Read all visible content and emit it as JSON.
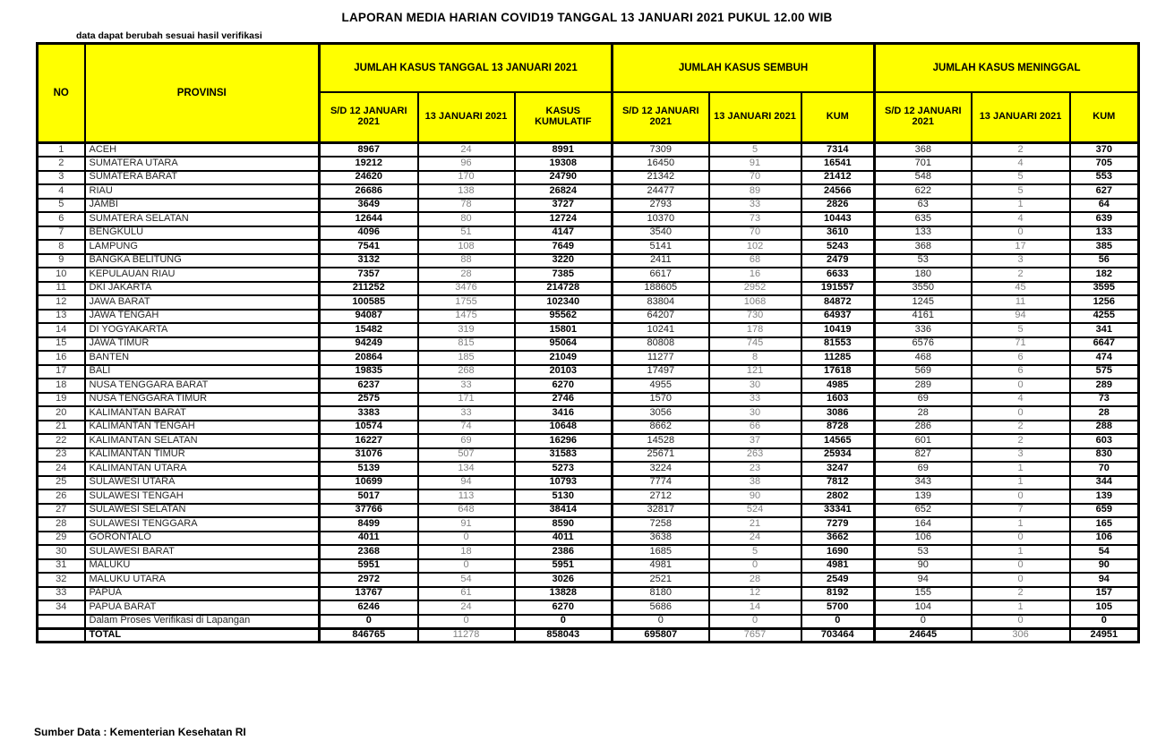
{
  "page": {
    "title": "LAPORAN MEDIA HARIAN COVID19 TANGGAL 13 JANUARI 2021 PUKUL 12.00 WIB",
    "note": "data dapat berubah sesuai hasil verifikasi",
    "source": "Sumber Data : Kementerian Kesehatan RI"
  },
  "colors": {
    "header_bg": "#FFFF00",
    "border": "#000000",
    "muted_text": "#808080"
  },
  "table": {
    "columns": {
      "no": "NO",
      "provinsi": "PROVINSI"
    },
    "groups": [
      {
        "label": "JUMLAH KASUS TANGGAL 13 JANUARI 2021",
        "subcolumns": [
          "S/D 12 JANUARI 2021",
          "13 JANUARI 2021",
          "KASUS KUMULATIF"
        ]
      },
      {
        "label": "JUMLAH KASUS SEMBUH",
        "subcolumns": [
          "S/D 12 JANUARI 2021",
          "13 JANUARI 2021",
          "KUM"
        ]
      },
      {
        "label": "JUMLAH KASUS MENINGGAL",
        "subcolumns": [
          "S/D 12 JANUARI 2021",
          "13 JANUARI 2021",
          "KUM"
        ]
      }
    ],
    "rows": [
      {
        "no": "1",
        "provinsi": "ACEH",
        "values": [
          "8967",
          "24",
          "8991",
          "7309",
          "5",
          "7314",
          "368",
          "2",
          "370"
        ]
      },
      {
        "no": "2",
        "provinsi": "SUMATERA UTARA",
        "values": [
          "19212",
          "96",
          "19308",
          "16450",
          "91",
          "16541",
          "701",
          "4",
          "705"
        ]
      },
      {
        "no": "3",
        "provinsi": "SUMATERA BARAT",
        "values": [
          "24620",
          "170",
          "24790",
          "21342",
          "70",
          "21412",
          "548",
          "5",
          "553"
        ]
      },
      {
        "no": "4",
        "provinsi": "RIAU",
        "values": [
          "26686",
          "138",
          "26824",
          "24477",
          "89",
          "24566",
          "622",
          "5",
          "627"
        ]
      },
      {
        "no": "5",
        "provinsi": "JAMBI",
        "values": [
          "3649",
          "78",
          "3727",
          "2793",
          "33",
          "2826",
          "63",
          "1",
          "64"
        ]
      },
      {
        "no": "6",
        "provinsi": "SUMATERA SELATAN",
        "values": [
          "12644",
          "80",
          "12724",
          "10370",
          "73",
          "10443",
          "635",
          "4",
          "639"
        ]
      },
      {
        "no": "7",
        "provinsi": "BENGKULU",
        "values": [
          "4096",
          "51",
          "4147",
          "3540",
          "70",
          "3610",
          "133",
          "0",
          "133"
        ]
      },
      {
        "no": "8",
        "provinsi": "LAMPUNG",
        "values": [
          "7541",
          "108",
          "7649",
          "5141",
          "102",
          "5243",
          "368",
          "17",
          "385"
        ]
      },
      {
        "no": "9",
        "provinsi": "BANGKA BELITUNG",
        "values": [
          "3132",
          "88",
          "3220",
          "2411",
          "68",
          "2479",
          "53",
          "3",
          "56"
        ]
      },
      {
        "no": "10",
        "provinsi": "KEPULAUAN RIAU",
        "values": [
          "7357",
          "28",
          "7385",
          "6617",
          "16",
          "6633",
          "180",
          "2",
          "182"
        ]
      },
      {
        "no": "11",
        "provinsi": "DKI JAKARTA",
        "values": [
          "211252",
          "3476",
          "214728",
          "188605",
          "2952",
          "191557",
          "3550",
          "45",
          "3595"
        ]
      },
      {
        "no": "12",
        "provinsi": "JAWA BARAT",
        "values": [
          "100585",
          "1755",
          "102340",
          "83804",
          "1068",
          "84872",
          "1245",
          "11",
          "1256"
        ]
      },
      {
        "no": "13",
        "provinsi": "JAWA TENGAH",
        "values": [
          "94087",
          "1475",
          "95562",
          "64207",
          "730",
          "64937",
          "4161",
          "94",
          "4255"
        ]
      },
      {
        "no": "14",
        "provinsi": "DI YOGYAKARTA",
        "values": [
          "15482",
          "319",
          "15801",
          "10241",
          "178",
          "10419",
          "336",
          "5",
          "341"
        ]
      },
      {
        "no": "15",
        "provinsi": "JAWA TIMUR",
        "values": [
          "94249",
          "815",
          "95064",
          "80808",
          "745",
          "81553",
          "6576",
          "71",
          "6647"
        ]
      },
      {
        "no": "16",
        "provinsi": "BANTEN",
        "values": [
          "20864",
          "185",
          "21049",
          "11277",
          "8",
          "11285",
          "468",
          "6",
          "474"
        ]
      },
      {
        "no": "17",
        "provinsi": "BALI",
        "values": [
          "19835",
          "268",
          "20103",
          "17497",
          "121",
          "17618",
          "569",
          "6",
          "575"
        ]
      },
      {
        "no": "18",
        "provinsi": "NUSA TENGGARA BARAT",
        "values": [
          "6237",
          "33",
          "6270",
          "4955",
          "30",
          "4985",
          "289",
          "0",
          "289"
        ]
      },
      {
        "no": "19",
        "provinsi": "NUSA TENGGARA TIMUR",
        "values": [
          "2575",
          "171",
          "2746",
          "1570",
          "33",
          "1603",
          "69",
          "4",
          "73"
        ]
      },
      {
        "no": "20",
        "provinsi": "KALIMANTAN BARAT",
        "values": [
          "3383",
          "33",
          "3416",
          "3056",
          "30",
          "3086",
          "28",
          "0",
          "28"
        ]
      },
      {
        "no": "21",
        "provinsi": "KALIMANTAN TENGAH",
        "values": [
          "10574",
          "74",
          "10648",
          "8662",
          "66",
          "8728",
          "286",
          "2",
          "288"
        ]
      },
      {
        "no": "22",
        "provinsi": "KALIMANTAN SELATAN",
        "values": [
          "16227",
          "69",
          "16296",
          "14528",
          "37",
          "14565",
          "601",
          "2",
          "603"
        ]
      },
      {
        "no": "23",
        "provinsi": "KALIMANTAN TIMUR",
        "values": [
          "31076",
          "507",
          "31583",
          "25671",
          "263",
          "25934",
          "827",
          "3",
          "830"
        ]
      },
      {
        "no": "24",
        "provinsi": "KALIMANTAN UTARA",
        "values": [
          "5139",
          "134",
          "5273",
          "3224",
          "23",
          "3247",
          "69",
          "1",
          "70"
        ]
      },
      {
        "no": "25",
        "provinsi": "SULAWESI UTARA",
        "values": [
          "10699",
          "94",
          "10793",
          "7774",
          "38",
          "7812",
          "343",
          "1",
          "344"
        ]
      },
      {
        "no": "26",
        "provinsi": "SULAWESI TENGAH",
        "values": [
          "5017",
          "113",
          "5130",
          "2712",
          "90",
          "2802",
          "139",
          "0",
          "139"
        ]
      },
      {
        "no": "27",
        "provinsi": "SULAWESI SELATAN",
        "values": [
          "37766",
          "648",
          "38414",
          "32817",
          "524",
          "33341",
          "652",
          "7",
          "659"
        ]
      },
      {
        "no": "28",
        "provinsi": "SULAWESI TENGGARA",
        "values": [
          "8499",
          "91",
          "8590",
          "7258",
          "21",
          "7279",
          "164",
          "1",
          "165"
        ]
      },
      {
        "no": "29",
        "provinsi": "GORONTALO",
        "values": [
          "4011",
          "0",
          "4011",
          "3638",
          "24",
          "3662",
          "106",
          "0",
          "106"
        ]
      },
      {
        "no": "30",
        "provinsi": "SULAWESI BARAT",
        "values": [
          "2368",
          "18",
          "2386",
          "1685",
          "5",
          "1690",
          "53",
          "1",
          "54"
        ]
      },
      {
        "no": "31",
        "provinsi": "MALUKU",
        "values": [
          "5951",
          "0",
          "5951",
          "4981",
          "0",
          "4981",
          "90",
          "0",
          "90"
        ]
      },
      {
        "no": "32",
        "provinsi": "MALUKU UTARA",
        "values": [
          "2972",
          "54",
          "3026",
          "2521",
          "28",
          "2549",
          "94",
          "0",
          "94"
        ]
      },
      {
        "no": "33",
        "provinsi": "PAPUA",
        "values": [
          "13767",
          "61",
          "13828",
          "8180",
          "12",
          "8192",
          "155",
          "2",
          "157"
        ]
      },
      {
        "no": "34",
        "provinsi": "PAPUA BARAT",
        "values": [
          "6246",
          "24",
          "6270",
          "5686",
          "14",
          "5700",
          "104",
          "1",
          "105"
        ]
      },
      {
        "no": "",
        "provinsi": "Dalam Proses Verifikasi di Lapangan",
        "style": "verification",
        "values": [
          "0",
          "0",
          "0",
          "0",
          "0",
          "0",
          "0",
          "0",
          "0"
        ]
      },
      {
        "no": "",
        "provinsi": "TOTAL",
        "style": "total",
        "values": [
          "846765",
          "11278",
          "858043",
          "695807",
          "7657",
          "703464",
          "24645",
          "306",
          "24951"
        ]
      }
    ]
  }
}
